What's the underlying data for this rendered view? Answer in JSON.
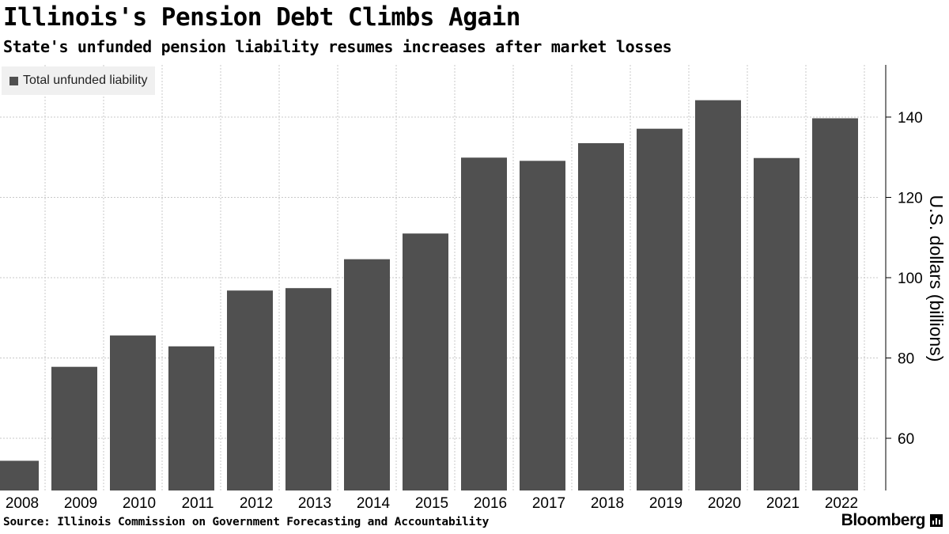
{
  "header": {
    "title": "Illinois's Pension Debt Climbs Again",
    "subtitle": "State's unfunded pension liability resumes increases after market losses"
  },
  "legend": {
    "label": "Total unfunded liability",
    "color": "#505050"
  },
  "footer": {
    "source": "Source: Illinois Commission on Government Forecasting and Accountability",
    "brand": "Bloomberg",
    "brand_icon": "bar-chart-icon"
  },
  "chart_data": {
    "type": "bar",
    "categories": [
      "2008",
      "2009",
      "2010",
      "2011",
      "2012",
      "2013",
      "2014",
      "2015",
      "2016",
      "2017",
      "2018",
      "2019",
      "2020",
      "2021",
      "2022"
    ],
    "series": [
      {
        "name": "Total unfunded liability",
        "values": [
          54.4,
          77.8,
          85.6,
          82.9,
          96.8,
          97.4,
          104.6,
          111.0,
          129.9,
          129.1,
          133.5,
          137.1,
          144.2,
          129.8,
          139.7
        ]
      }
    ],
    "ylabel": "U.S. dollars (billions)",
    "ylim": [
      47,
      153
    ],
    "yticks": [
      60,
      80,
      100,
      120,
      140
    ],
    "grid": true,
    "legend_position": "top-left",
    "axis_position": "right",
    "bar_color": "#505050"
  }
}
